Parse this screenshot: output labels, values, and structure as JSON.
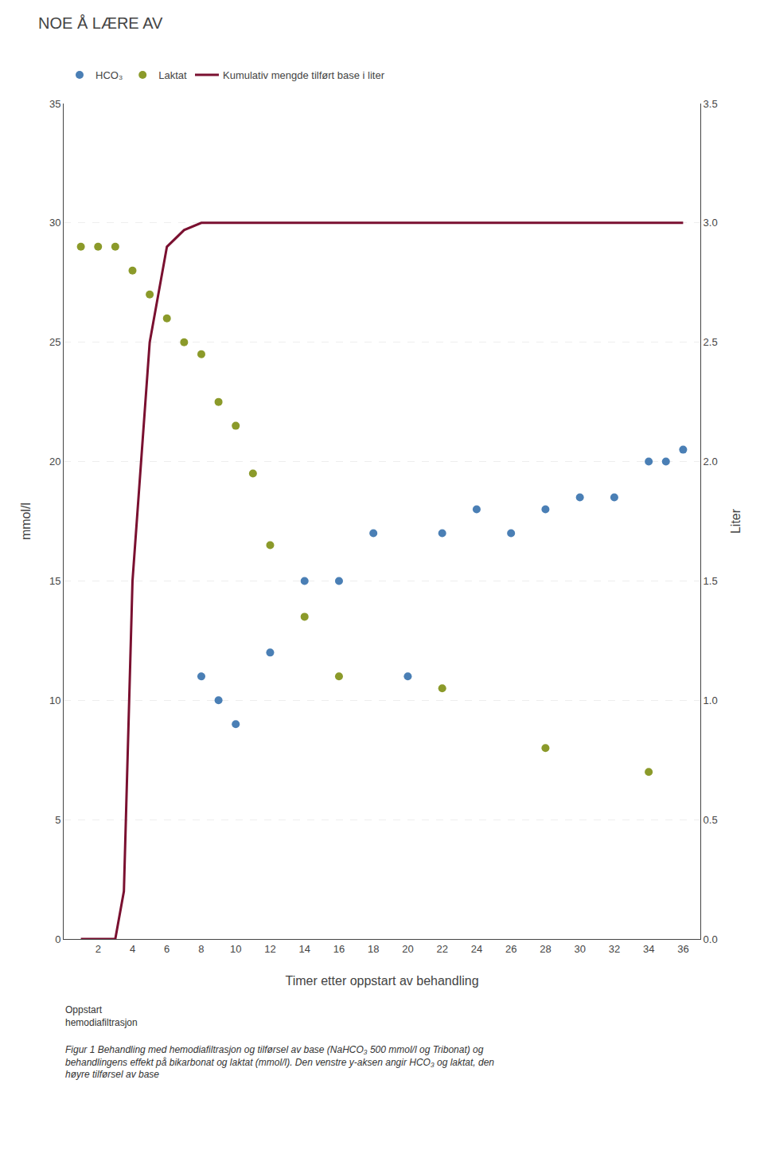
{
  "chart_data": {
    "type": "scatter",
    "title": "NOE Å LÆRE AV",
    "x_label": "Timer etter oppstart av behandling",
    "y_label": "mmol/l",
    "y2_label": "Liter",
    "annotations": [
      "Oppstart\nhemodiafiltrasjon",
      "Figur 1 Behandling med hemodiafiltrasjon og tilførsel av base (NaHCO₃ 500 mmol/l og Tribonat) og behandlingens effekt på bikarbonat og laktat (mmol/l). Den venstre y-aksen angir HCO₃ og laktat, den høyre tilførsel av base"
    ],
    "series": [
      {
        "name": "HCO₃",
        "type": "scatter",
        "color": "#4a7fb5",
        "axis": "y",
        "x": [
          8,
          9,
          10,
          12,
          14,
          16,
          18,
          20,
          22,
          24,
          26,
          28,
          30,
          32,
          34,
          35,
          36
        ],
        "values": [
          11,
          10,
          9,
          12,
          15,
          15,
          17,
          11,
          17,
          18,
          17,
          18,
          18.5,
          18.5,
          20,
          20,
          20.5
        ]
      },
      {
        "name": "Laktat",
        "type": "scatter",
        "color": "#8b9a2a",
        "axis": "y",
        "x": [
          1,
          2,
          3,
          4,
          5,
          6,
          7,
          8,
          9,
          10,
          11,
          12,
          14,
          16,
          22,
          28,
          34
        ],
        "values": [
          29,
          29,
          29,
          28,
          27,
          26,
          25,
          24.5,
          22.5,
          21.5,
          19.5,
          16.5,
          13.5,
          11,
          10.5,
          8,
          7
        ]
      },
      {
        "name": "Kumulativ mengde tilført base i liter",
        "type": "line",
        "color": "#7a1030",
        "axis": "y2",
        "x": [
          1,
          2,
          3,
          3.5,
          4,
          5,
          6,
          7,
          8,
          10,
          15,
          20,
          25,
          30,
          36
        ],
        "values": [
          0,
          0,
          0,
          0.2,
          1.5,
          2.5,
          2.9,
          2.97,
          3.0,
          3.0,
          3.0,
          3.0,
          3.0,
          3.0,
          3.0
        ]
      }
    ],
    "xlim": [
      0,
      37
    ],
    "xticks": [
      2,
      4,
      6,
      8,
      10,
      12,
      14,
      16,
      18,
      20,
      22,
      24,
      26,
      28,
      30,
      32,
      34,
      36
    ],
    "ylim": [
      0,
      35
    ],
    "yticks": [
      0,
      5,
      10,
      15,
      20,
      25,
      30,
      35
    ],
    "y2lim": [
      0,
      3.5
    ],
    "y2ticks": [
      {
        "value": 0,
        "label": "0.0"
      },
      0.5,
      {
        "value": 1,
        "label": "1.0"
      },
      1.5,
      {
        "value": 2,
        "label": "2.0"
      },
      2.5,
      {
        "value": 3,
        "label": "3.0"
      },
      3.5
    ],
    "grid": "y",
    "legend": "top"
  }
}
